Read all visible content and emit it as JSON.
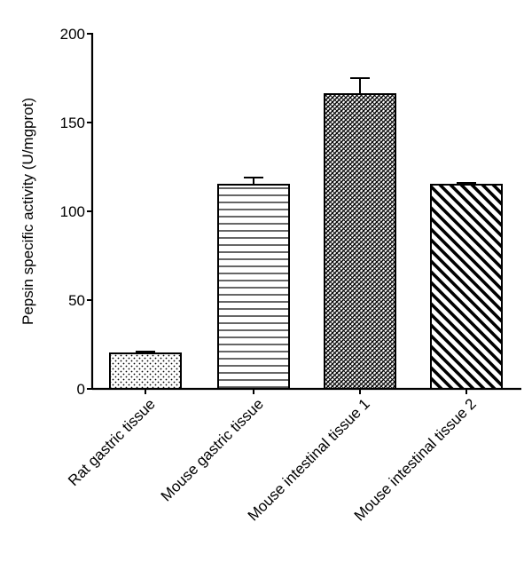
{
  "chart_data": {
    "type": "bar",
    "ylabel": "Pepsin specific activity (U/mgprot)",
    "ylim": [
      0,
      200
    ],
    "yticks": [
      0,
      50,
      100,
      150,
      200
    ],
    "grid": false,
    "categories": [
      "Rat gastric tissue",
      "Mouse gastric tissue",
      "Mouse intestinal tissue 1",
      "Mouse intestinal tissue 2"
    ],
    "values": [
      20,
      115,
      166,
      115
    ],
    "errors": [
      1,
      4,
      9,
      1
    ],
    "patterns": [
      "dots",
      "horizontal-lines",
      "crosshatch",
      "diagonal-thick"
    ]
  }
}
